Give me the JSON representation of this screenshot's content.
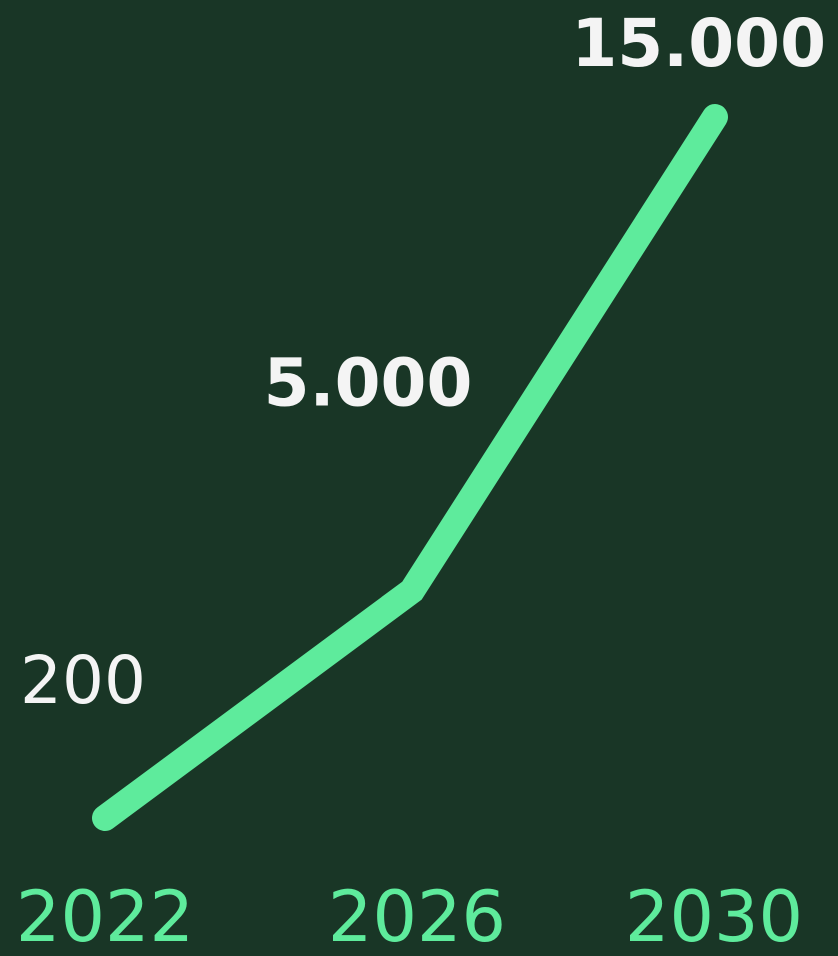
{
  "chart_data": {
    "type": "line",
    "categories": [
      "2022",
      "2026",
      "2030"
    ],
    "series": [
      {
        "name": null,
        "color": "#5eeb9c",
        "values": [
          200,
          5000,
          15000
        ],
        "value_labels": [
          "200",
          "5.000",
          "15.000"
        ]
      }
    ]
  }
}
